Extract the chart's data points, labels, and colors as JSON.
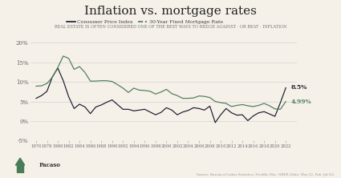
{
  "title": "Inflation vs. mortgage rates",
  "subtitle": "REAL ESTATE IS OFTEN CONSIDERED ONE OF THE BEST WAYS TO HEDGE AGAINST · OR BEAT · INFLATION",
  "source_text": "Source: Bureau of Labor Statistics, Freddie Mac, NBER (Date: May-22, Pub: Jul-22)",
  "logo_text": "Pacaso",
  "background_color": "#f5f0e8",
  "cpi_color": "#1a1a2e",
  "mortgage_color": "#4a7c59",
  "ylim": [
    -5,
    20
  ],
  "yticks": [
    -5,
    0,
    5,
    10,
    15,
    20
  ],
  "ytick_labels": [
    "-5%",
    "0%",
    "5%",
    "10%",
    "15%",
    "20%"
  ],
  "end_label_mortgage": "4.99%",
  "end_label_cpi": "8.5%",
  "legend_cpi": "Consumer Price Index",
  "legend_mortgage": "30-Year Fixed Mortgage Rate",
  "cpi_data": [
    [
      1976,
      5.8
    ],
    [
      1977,
      6.5
    ],
    [
      1978,
      7.6
    ],
    [
      1979,
      11.3
    ],
    [
      1980,
      13.5
    ],
    [
      1981,
      10.3
    ],
    [
      1982,
      6.2
    ],
    [
      1983,
      3.2
    ],
    [
      1984,
      4.3
    ],
    [
      1985,
      3.6
    ],
    [
      1986,
      1.9
    ],
    [
      1987,
      3.6
    ],
    [
      1988,
      4.1
    ],
    [
      1989,
      4.8
    ],
    [
      1990,
      5.4
    ],
    [
      1991,
      4.2
    ],
    [
      1992,
      3.0
    ],
    [
      1993,
      3.0
    ],
    [
      1994,
      2.6
    ],
    [
      1995,
      2.8
    ],
    [
      1996,
      3.0
    ],
    [
      1997,
      2.3
    ],
    [
      1998,
      1.6
    ],
    [
      1999,
      2.2
    ],
    [
      2000,
      3.4
    ],
    [
      2001,
      2.8
    ],
    [
      2002,
      1.6
    ],
    [
      2003,
      2.3
    ],
    [
      2004,
      2.7
    ],
    [
      2005,
      3.4
    ],
    [
      2006,
      3.2
    ],
    [
      2007,
      2.8
    ],
    [
      2008,
      3.8
    ],
    [
      2009,
      -0.4
    ],
    [
      2010,
      1.6
    ],
    [
      2011,
      3.2
    ],
    [
      2012,
      2.1
    ],
    [
      2013,
      1.5
    ],
    [
      2014,
      1.6
    ],
    [
      2015,
      0.1
    ],
    [
      2016,
      1.3
    ],
    [
      2017,
      2.1
    ],
    [
      2018,
      2.4
    ],
    [
      2019,
      1.8
    ],
    [
      2020,
      1.2
    ],
    [
      2021,
      4.7
    ],
    [
      2022,
      8.5
    ]
  ],
  "mortgage_data": [
    [
      1976,
      8.9
    ],
    [
      1977,
      9.0
    ],
    [
      1978,
      9.6
    ],
    [
      1979,
      11.2
    ],
    [
      1980,
      13.7
    ],
    [
      1981,
      16.6
    ],
    [
      1982,
      16.0
    ],
    [
      1983,
      13.2
    ],
    [
      1984,
      13.9
    ],
    [
      1985,
      12.4
    ],
    [
      1986,
      10.2
    ],
    [
      1987,
      10.2
    ],
    [
      1988,
      10.3
    ],
    [
      1989,
      10.3
    ],
    [
      1990,
      10.1
    ],
    [
      1991,
      9.3
    ],
    [
      1992,
      8.4
    ],
    [
      1993,
      7.3
    ],
    [
      1994,
      8.4
    ],
    [
      1995,
      7.9
    ],
    [
      1996,
      7.8
    ],
    [
      1997,
      7.6
    ],
    [
      1998,
      6.9
    ],
    [
      1999,
      7.4
    ],
    [
      2000,
      8.1
    ],
    [
      2001,
      7.0
    ],
    [
      2002,
      6.5
    ],
    [
      2003,
      5.8
    ],
    [
      2004,
      5.8
    ],
    [
      2005,
      5.9
    ],
    [
      2006,
      6.4
    ],
    [
      2007,
      6.3
    ],
    [
      2008,
      6.0
    ],
    [
      2009,
      5.0
    ],
    [
      2010,
      4.7
    ],
    [
      2011,
      4.5
    ],
    [
      2012,
      3.7
    ],
    [
      2013,
      4.0
    ],
    [
      2014,
      4.2
    ],
    [
      2015,
      3.9
    ],
    [
      2016,
      3.7
    ],
    [
      2017,
      4.0
    ],
    [
      2018,
      4.5
    ],
    [
      2019,
      3.9
    ],
    [
      2020,
      3.1
    ],
    [
      2021,
      3.0
    ],
    [
      2022,
      4.99
    ]
  ]
}
